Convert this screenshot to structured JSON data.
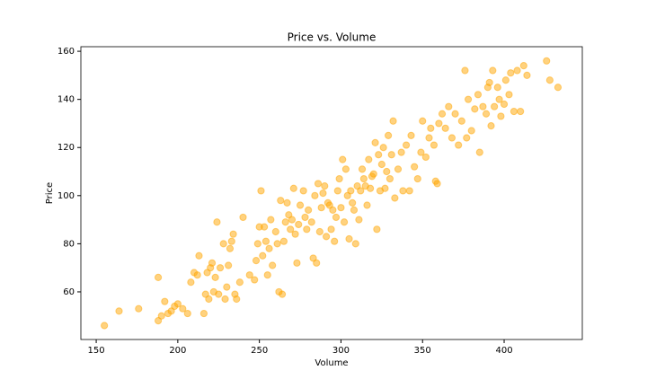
{
  "chart_data": {
    "type": "scatter",
    "title": "Price vs. Volume",
    "x_label": "Volume",
    "y_label": "Price",
    "color": "#ffa500",
    "x": [
      155,
      164,
      176,
      188,
      188,
      190,
      192,
      194,
      196,
      198,
      200,
      203,
      206,
      208,
      210,
      212,
      213,
      216,
      217,
      218,
      219,
      220,
      221,
      222,
      223,
      224,
      225,
      226,
      228,
      229,
      230,
      231,
      232,
      233,
      234,
      235,
      236,
      238,
      240,
      244,
      247,
      248,
      249,
      250,
      251,
      252,
      253,
      254,
      255,
      256,
      257,
      258,
      260,
      261,
      262,
      263,
      264,
      265,
      266,
      267,
      268,
      269,
      270,
      271,
      272,
      273,
      274,
      275,
      277,
      278,
      279,
      280,
      282,
      283,
      284,
      285,
      286,
      287,
      288,
      289,
      290,
      291,
      292,
      293,
      294,
      295,
      296,
      297,
      298,
      299,
      300,
      301,
      302,
      303,
      304,
      305,
      306,
      307,
      308,
      309,
      310,
      311,
      312,
      313,
      314,
      315,
      316,
      317,
      318,
      319,
      320,
      321,
      322,
      323,
      324,
      325,
      326,
      327,
      328,
      329,
      330,
      331,
      332,
      333,
      335,
      337,
      338,
      340,
      342,
      343,
      345,
      347,
      349,
      350,
      352,
      354,
      355,
      357,
      358,
      359,
      360,
      362,
      364,
      366,
      368,
      370,
      372,
      374,
      376,
      377,
      378,
      380,
      382,
      384,
      385,
      387,
      389,
      390,
      391,
      392,
      393,
      394,
      396,
      397,
      398,
      400,
      401,
      403,
      404,
      406,
      408,
      410,
      412,
      414,
      426,
      428,
      433
    ],
    "values": [
      46,
      52,
      53,
      48,
      66,
      50,
      56,
      51,
      52,
      54,
      55,
      53,
      51,
      64,
      68,
      67,
      75,
      51,
      59,
      68,
      57,
      70,
      72,
      60,
      66,
      89,
      59,
      70,
      80,
      57,
      62,
      71,
      78,
      81,
      84,
      59,
      57,
      64,
      91,
      67,
      65,
      73,
      80,
      87,
      102,
      75,
      87,
      81,
      67,
      78,
      90,
      71,
      85,
      80,
      60,
      98,
      59,
      81,
      89,
      97,
      92,
      86,
      90,
      103,
      84,
      72,
      88,
      96,
      102,
      91,
      86,
      94,
      89,
      74,
      100,
      72,
      105,
      85,
      95,
      101,
      104,
      83,
      97,
      96,
      86,
      94,
      81,
      91,
      102,
      107,
      95,
      115,
      89,
      111,
      100,
      82,
      102,
      97,
      94,
      80,
      104,
      90,
      102,
      111,
      107,
      104,
      96,
      115,
      103,
      108,
      109,
      122,
      86,
      117,
      102,
      113,
      120,
      103,
      110,
      125,
      107,
      117,
      131,
      99,
      111,
      118,
      102,
      121,
      102,
      125,
      112,
      107,
      118,
      131,
      116,
      124,
      128,
      121,
      106,
      105,
      130,
      134,
      128,
      137,
      124,
      134,
      121,
      131,
      152,
      124,
      140,
      127,
      136,
      142,
      118,
      137,
      134,
      145,
      147,
      129,
      152,
      137,
      145,
      140,
      133,
      138,
      148,
      142,
      151,
      135,
      152,
      135,
      154,
      150,
      156,
      148,
      145
    ],
    "xlim": [
      140.6,
      447.9
    ],
    "ylim": [
      40.2,
      161.9
    ],
    "xticks": [
      150,
      200,
      250,
      300,
      350,
      400
    ],
    "yticks": [
      60,
      80,
      100,
      120,
      140,
      160
    ]
  }
}
